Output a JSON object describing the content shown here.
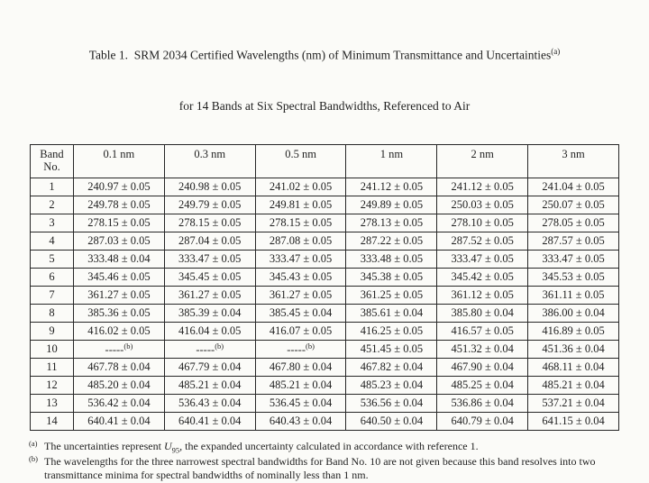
{
  "page": {
    "title_line1": "Table 1.  SRM 2034 Certified Wavelengths (nm) of Minimum Transmittance and Uncertainties",
    "title_sup": "(a)",
    "title_line2": "for 14 Bands at Six Spectral Bandwidths, Referenced to Air"
  },
  "table": {
    "band_header": "Band No.",
    "col_headers": [
      "0.1 nm",
      "0.3 nm",
      "0.5 nm",
      "1 nm",
      "2 nm",
      "3 nm"
    ],
    "rows": [
      {
        "band": "1",
        "values": [
          "240.97 ± 0.05",
          "240.98 ± 0.05",
          "241.02 ± 0.05",
          "241.12 ± 0.05",
          "241.12 ± 0.05",
          "241.04 ± 0.05"
        ]
      },
      {
        "band": "2",
        "values": [
          "249.78 ± 0.05",
          "249.79 ± 0.05",
          "249.81 ± 0.05",
          "249.89 ± 0.05",
          "250.03 ± 0.05",
          "250.07 ± 0.05"
        ]
      },
      {
        "band": "3",
        "values": [
          "278.15 ± 0.05",
          "278.15 ± 0.05",
          "278.15 ± 0.05",
          "278.13 ± 0.05",
          "278.10 ± 0.05",
          "278.05 ± 0.05"
        ]
      },
      {
        "band": "4",
        "values": [
          "287.03 ± 0.05",
          "287.04 ± 0.05",
          "287.08 ± 0.05",
          "287.22 ± 0.05",
          "287.52 ± 0.05",
          "287.57 ± 0.05"
        ]
      },
      {
        "band": "5",
        "values": [
          "333.48 ± 0.04",
          "333.47 ± 0.05",
          "333.47 ± 0.05",
          "333.48 ± 0.05",
          "333.47 ± 0.05",
          "333.47 ± 0.05"
        ]
      },
      {
        "band": "6",
        "values": [
          "345.46 ± 0.05",
          "345.45 ± 0.05",
          "345.43 ± 0.05",
          "345.38 ± 0.05",
          "345.42 ± 0.05",
          "345.53 ± 0.05"
        ]
      },
      {
        "band": "7",
        "values": [
          "361.27 ± 0.05",
          "361.27 ± 0.05",
          "361.27 ± 0.05",
          "361.25 ± 0.05",
          "361.12 ± 0.05",
          "361.11 ± 0.05"
        ]
      },
      {
        "band": "8",
        "values": [
          "385.36 ± 0.05",
          "385.39 ± 0.04",
          "385.45 ± 0.04",
          "385.61 ± 0.04",
          "385.80 ± 0.04",
          "386.00 ± 0.04"
        ]
      },
      {
        "band": "9",
        "values": [
          "416.02 ± 0.05",
          "416.04 ± 0.05",
          "416.07 ± 0.05",
          "416.25 ± 0.05",
          "416.57 ± 0.05",
          "416.89 ± 0.05"
        ]
      },
      {
        "band": "10",
        "values": [
          {
            "text": "-----",
            "sup": "(b)"
          },
          {
            "text": "-----",
            "sup": "(b)"
          },
          {
            "text": "-----",
            "sup": "(b)"
          },
          "451.45 ± 0.05",
          "451.32 ± 0.04",
          "451.36 ± 0.04"
        ]
      },
      {
        "band": "11",
        "values": [
          "467.78 ± 0.04",
          "467.79 ± 0.04",
          "467.80 ± 0.04",
          "467.82 ± 0.04",
          "467.90 ± 0.04",
          "468.11 ± 0.04"
        ]
      },
      {
        "band": "12",
        "values": [
          "485.20 ± 0.04",
          "485.21 ± 0.04",
          "485.21 ± 0.04",
          "485.23 ± 0.04",
          "485.25 ± 0.04",
          "485.21 ± 0.04"
        ]
      },
      {
        "band": "13",
        "values": [
          "536.42 ± 0.04",
          "536.43 ± 0.04",
          "536.45 ± 0.04",
          "536.56 ± 0.04",
          "536.86 ± 0.04",
          "537.21 ± 0.04"
        ]
      },
      {
        "band": "14",
        "values": [
          "640.41 ± 0.04",
          "640.41 ± 0.04",
          "640.43 ± 0.04",
          "640.50 ± 0.04",
          "640.79 ± 0.04",
          "641.15 ± 0.04"
        ]
      }
    ]
  },
  "footnotes": {
    "a": {
      "marker": "(a)",
      "text_before": "The uncertainties represent ",
      "symbol": "U",
      "symbol_sub": "95",
      "text_after": ", the expanded uncertainty calculated in accordance with reference 1."
    },
    "b": {
      "marker": "(b)",
      "text": "The wavelengths for the three narrowest spectral bandwidths for Band No. 10 are not given because this band resolves into two transmittance minima for spectral bandwidths of nominally less than 1 nm."
    }
  }
}
